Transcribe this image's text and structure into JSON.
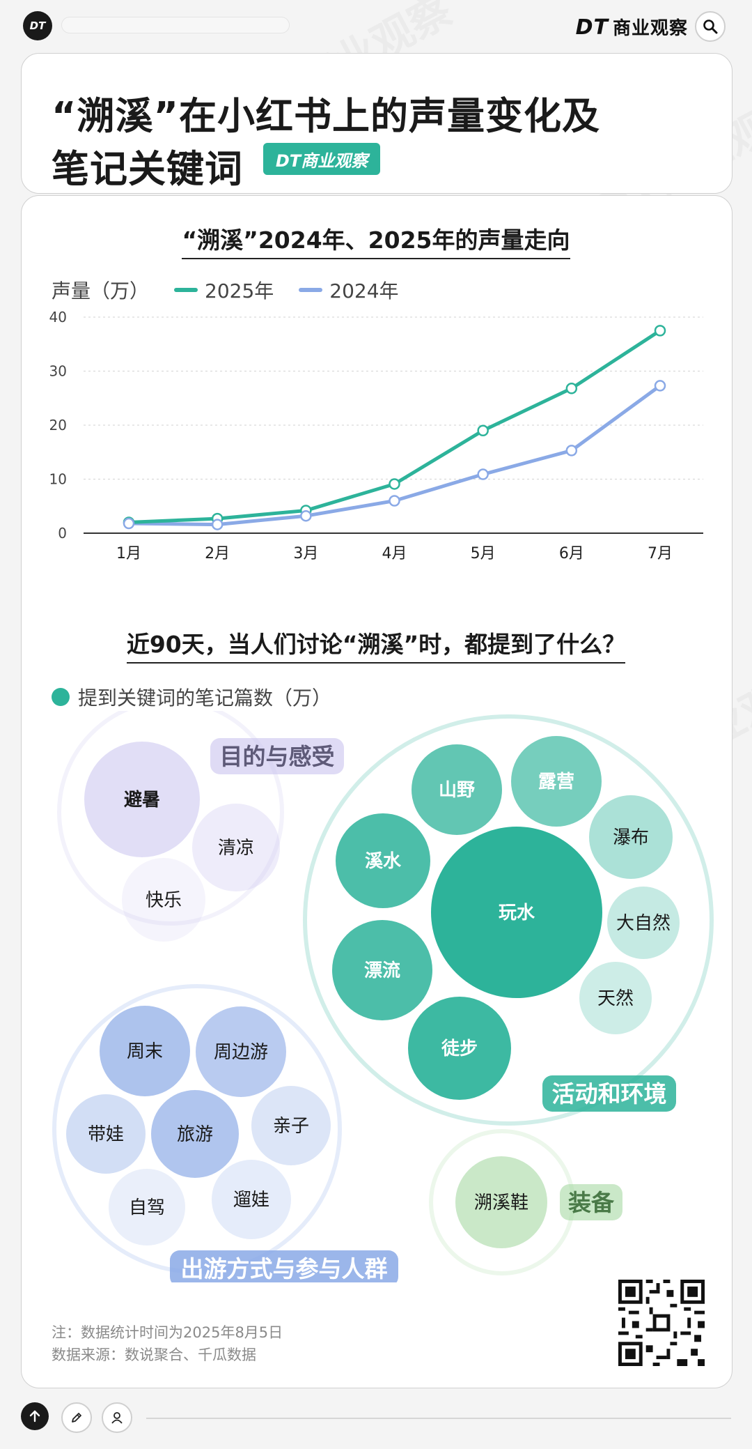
{
  "header": {
    "logo": "DT",
    "brand_mark": "DT",
    "brand_name": "商业观察"
  },
  "title": {
    "line1": "“溯溪”在小红书上的声量变化及",
    "line2": "笔记关键词",
    "badge": "DT商业观察"
  },
  "watermark": "DT商业观察",
  "chart_data": [
    {
      "type": "line",
      "title": "“溯溪”2024年、2025年的声量走向",
      "ylabel": "声量（万）",
      "xlabel": "",
      "categories": [
        "1月",
        "2月",
        "3月",
        "4月",
        "5月",
        "6月",
        "7月"
      ],
      "series": [
        {
          "name": "2025年",
          "color": "#2db39a",
          "values": [
            2.0,
            2.7,
            4.2,
            9.1,
            19.0,
            26.8,
            37.5
          ]
        },
        {
          "name": "2024年",
          "color": "#8aa9e6",
          "values": [
            1.8,
            1.6,
            3.2,
            6.0,
            10.9,
            15.3,
            27.3
          ]
        }
      ],
      "ylim": [
        0,
        40
      ],
      "yticks": [
        0,
        10,
        20,
        30,
        40
      ],
      "grid": true,
      "legend": "top-left"
    },
    {
      "type": "bubble",
      "title": "近90天，当人们讨论“溯溪”时，都提到了什么？",
      "legend": "提到关键词的笔记篇数（万）",
      "groups": [
        {
          "name": "目的与感受",
          "color": "#c9c3ee",
          "keywords": [
            "避暑",
            "清凉",
            "快乐"
          ]
        },
        {
          "name": "活动和环境",
          "color": "#2db39a",
          "keywords": [
            "玩水",
            "山野",
            "露营",
            "瀑布",
            "溪水",
            "大自然",
            "漂流",
            "天然",
            "徒步"
          ]
        },
        {
          "name": "出游方式与参与人群",
          "color": "#8aa9e6",
          "keywords": [
            "周末",
            "周边游",
            "带娃",
            "旅游",
            "亲子",
            "自驾",
            "遛娃"
          ]
        },
        {
          "name": "装备",
          "color": "#a7d9a4",
          "keywords": [
            "溯溪鞋"
          ]
        }
      ]
    }
  ],
  "footer": {
    "note": "注：数据统计时间为2025年8月5日",
    "source": "数据来源：数说聚合、千瓜数据"
  }
}
